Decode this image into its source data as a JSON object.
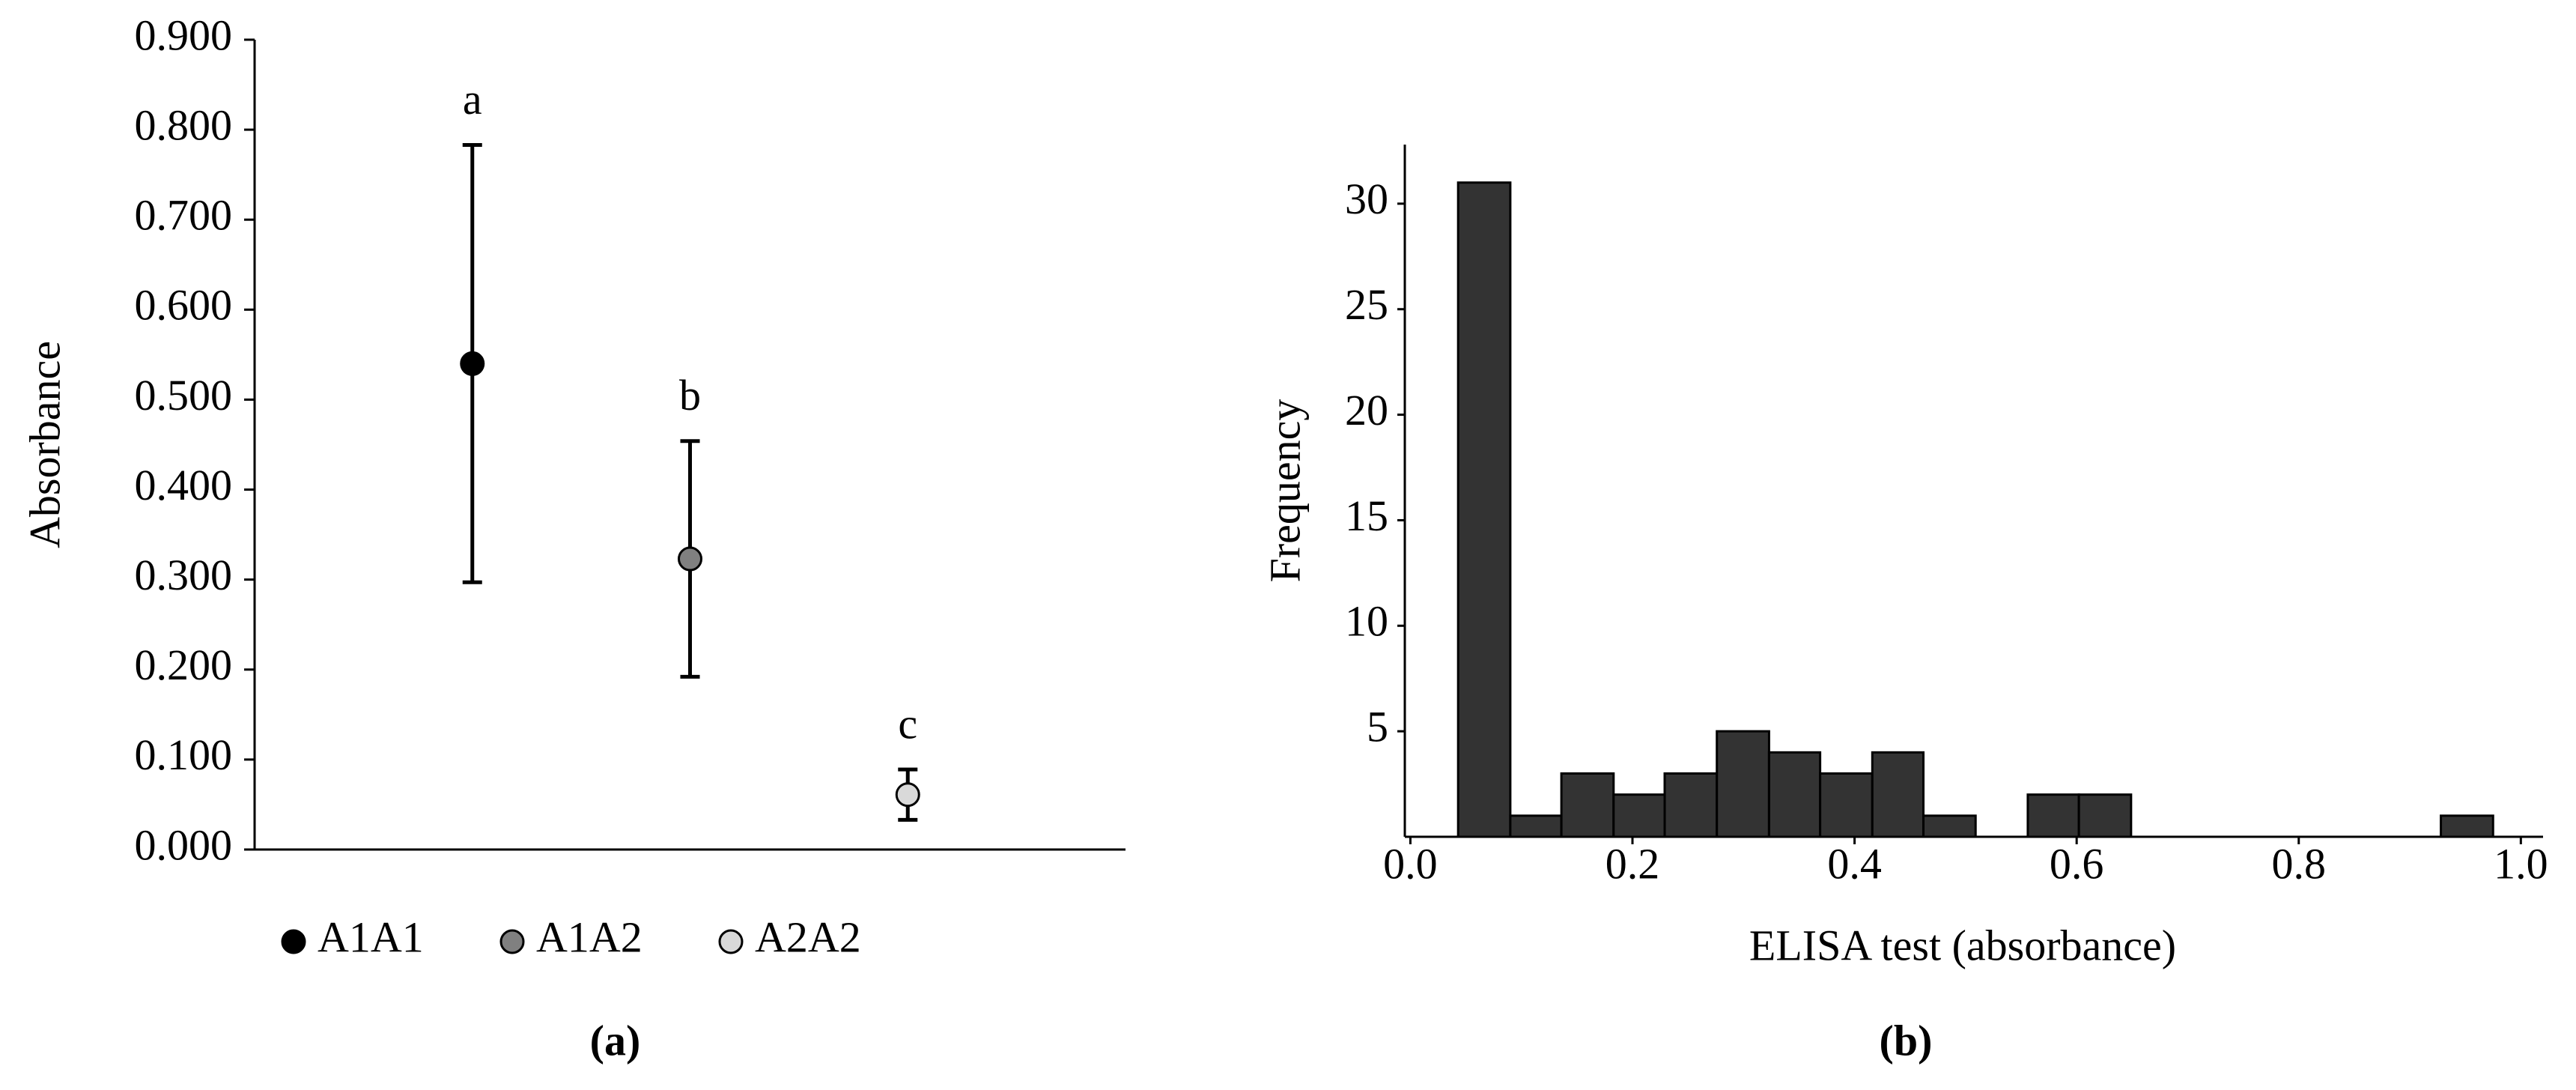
{
  "chart_data": [
    {
      "type": "dot",
      "ylabel": "Absorbance",
      "caption": "(a)",
      "categories": [
        "A1A1",
        "A1A2",
        "A2A2"
      ],
      "series": [
        {
          "name": "A1A1",
          "color": "#000000",
          "values": [
            0.54,
            null,
            null
          ],
          "errors": [
            0.243,
            null,
            null
          ]
        },
        {
          "name": "A1A2",
          "color": "#808080",
          "values": [
            null,
            0.323,
            null
          ],
          "errors": [
            null,
            0.131,
            null
          ]
        },
        {
          "name": "A2A2",
          "color": "#d9d9d9",
          "values": [
            null,
            null,
            0.061
          ],
          "errors": [
            null,
            null,
            0.028
          ]
        }
      ],
      "annotations": [
        "a",
        "b",
        "c"
      ],
      "ylim": [
        0,
        0.9
      ],
      "yticks": [
        {
          "value": 0,
          "label": "0.000"
        },
        {
          "value": 0.1,
          "label": "0.100"
        },
        {
          "value": 0.2,
          "label": "0.200"
        },
        {
          "value": 0.3,
          "label": "0.300"
        },
        {
          "value": 0.4,
          "label": "0.400"
        },
        {
          "value": 0.5,
          "label": "0.500"
        },
        {
          "value": 0.6,
          "label": "0.600"
        },
        {
          "value": 0.7,
          "label": "0.700"
        },
        {
          "value": 0.8,
          "label": "0.800"
        },
        {
          "value": 0.9,
          "label": "0.900"
        }
      ]
    },
    {
      "type": "histogram",
      "xlabel": "ELISA test (absorbance)",
      "ylabel": "Frequency",
      "caption": "(b)",
      "color": "#333333",
      "bins": [
        0.043,
        0.09,
        0.136,
        0.183,
        0.229,
        0.276,
        0.323,
        0.369,
        0.416,
        0.462,
        0.509,
        0.556,
        0.602,
        0.649,
        0.695,
        0.742,
        0.789,
        0.835,
        0.882,
        0.928,
        0.975
      ],
      "values": [
        31,
        1,
        3,
        2,
        3,
        5,
        4,
        3,
        4,
        1,
        0,
        2,
        2,
        0,
        0,
        0,
        0,
        0,
        0,
        1
      ],
      "xlim": [
        -0.005,
        1.02
      ],
      "ylim": [
        0,
        32.8
      ],
      "xticks": [
        {
          "value": 0,
          "label": "0.0"
        },
        0.2,
        0.4,
        0.6,
        0.8,
        {
          "value": 1,
          "label": "1.0"
        }
      ],
      "yticks": [
        5,
        10,
        15,
        20,
        25,
        30
      ]
    }
  ]
}
